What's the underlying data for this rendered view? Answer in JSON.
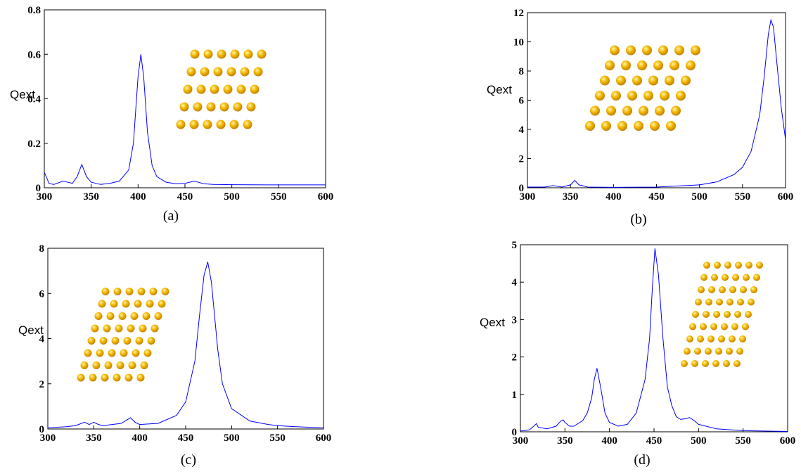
{
  "chart_data": [
    {
      "type": "line",
      "caption": "(a)",
      "y_label": "Qext",
      "color": "#0000ff",
      "x": [
        300,
        305,
        310,
        320,
        330,
        335,
        340,
        345,
        350,
        360,
        370,
        380,
        390,
        395,
        400,
        403,
        406,
        410,
        415,
        420,
        430,
        440,
        450,
        460,
        470,
        480,
        500,
        550,
        600
      ],
      "values": [
        0.07,
        0.02,
        0.015,
        0.03,
        0.02,
        0.05,
        0.105,
        0.05,
        0.025,
        0.015,
        0.02,
        0.03,
        0.08,
        0.2,
        0.5,
        0.6,
        0.5,
        0.25,
        0.1,
        0.05,
        0.025,
        0.018,
        0.02,
        0.03,
        0.018,
        0.015,
        0.014,
        0.013,
        0.013
      ],
      "xlim": [
        300,
        600
      ],
      "xticks": [
        300,
        350,
        400,
        450,
        500,
        550,
        600
      ],
      "ylim": [
        0,
        0.8
      ],
      "yticks": [
        0,
        0.2,
        0.4,
        0.6,
        0.8
      ]
    },
    {
      "type": "line",
      "caption": "(b)",
      "y_label": "Qext",
      "color": "#0000ff",
      "x": [
        300,
        320,
        330,
        340,
        350,
        355,
        360,
        370,
        400,
        450,
        500,
        520,
        540,
        550,
        560,
        570,
        575,
        580,
        583,
        586,
        590,
        595,
        600
      ],
      "values": [
        0.05,
        0.05,
        0.15,
        0.05,
        0.2,
        0.5,
        0.2,
        0.05,
        0.03,
        0.05,
        0.2,
        0.4,
        0.9,
        1.4,
        2.5,
        5,
        7.5,
        10.5,
        11.5,
        11,
        8.5,
        5.5,
        3.3
      ],
      "xlim": [
        300,
        600
      ],
      "xticks": [
        300,
        350,
        400,
        450,
        500,
        550,
        600
      ],
      "ylim": [
        0,
        12
      ],
      "yticks": [
        0,
        2,
        4,
        6,
        8,
        10,
        12
      ]
    },
    {
      "type": "line",
      "caption": "(c)",
      "y_label": "Qext",
      "color": "#0000ff",
      "x": [
        300,
        320,
        330,
        340,
        345,
        350,
        355,
        360,
        380,
        390,
        395,
        400,
        420,
        440,
        450,
        460,
        465,
        470,
        474,
        478,
        485,
        490,
        500,
        520,
        540,
        550,
        570,
        600
      ],
      "values": [
        0.05,
        0.1,
        0.15,
        0.3,
        0.2,
        0.3,
        0.2,
        0.15,
        0.25,
        0.5,
        0.3,
        0.2,
        0.25,
        0.6,
        1.2,
        3,
        5,
        6.8,
        7.4,
        6.5,
        3.5,
        2,
        0.9,
        0.35,
        0.2,
        0.15,
        0.1,
        0.05
      ],
      "xlim": [
        300,
        600
      ],
      "xticks": [
        300,
        350,
        400,
        450,
        500,
        550,
        600
      ],
      "ylim": [
        0,
        8
      ],
      "yticks": [
        0,
        2,
        4,
        6,
        8
      ]
    },
    {
      "type": "line",
      "caption": "(d)",
      "y_label": "Qext",
      "color": "#0000ff",
      "x": [
        300,
        310,
        315,
        318,
        320,
        330,
        340,
        345,
        348,
        350,
        355,
        360,
        370,
        375,
        380,
        383,
        386,
        390,
        395,
        400,
        410,
        420,
        430,
        440,
        445,
        448,
        451,
        455,
        460,
        465,
        470,
        475,
        480,
        485,
        490,
        495,
        500,
        520,
        550,
        600
      ],
      "values": [
        0.02,
        0.05,
        0.15,
        0.22,
        0.12,
        0.08,
        0.15,
        0.28,
        0.32,
        0.25,
        0.15,
        0.15,
        0.3,
        0.5,
        0.9,
        1.4,
        1.7,
        1.2,
        0.5,
        0.25,
        0.15,
        0.2,
        0.5,
        1.4,
        2.5,
        3.8,
        4.9,
        4.2,
        2.5,
        1.2,
        0.7,
        0.4,
        0.33,
        0.35,
        0.38,
        0.3,
        0.2,
        0.08,
        0.03,
        0.01
      ],
      "xlim": [
        300,
        600
      ],
      "xticks": [
        300,
        350,
        400,
        450,
        500,
        550,
        600
      ],
      "ylim": [
        0,
        5
      ],
      "yticks": [
        0,
        1,
        2,
        3,
        4,
        5
      ]
    }
  ]
}
